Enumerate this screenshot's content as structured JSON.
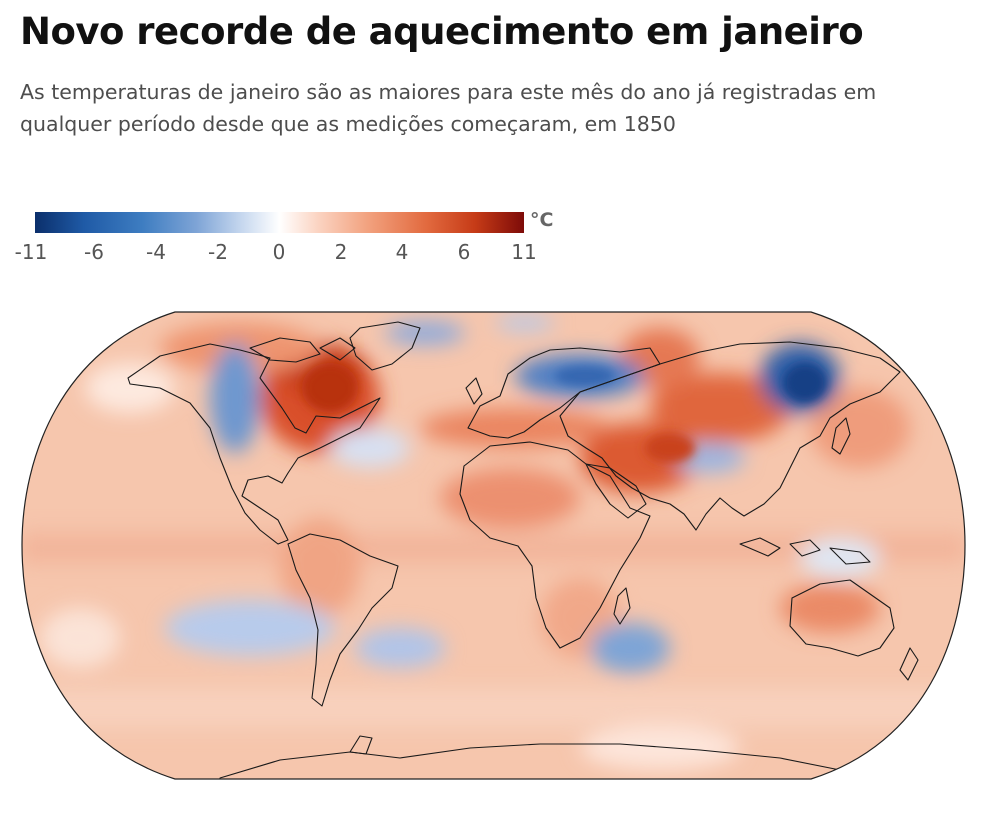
{
  "header": {
    "title": "Novo recorde de aquecimento em janeiro",
    "subtitle": "As temperaturas de janeiro são as maiores para este mês do ano já registradas em qualquer período desde que as medições começaram, em 1850"
  },
  "legend": {
    "unit": "°C",
    "ticks": [
      "-11",
      "-6",
      "-4",
      "-2",
      "0",
      "2",
      "4",
      "6",
      "11"
    ],
    "colors": {
      "cold_extreme": "#0b2f6b",
      "cold": "#3e7dc1",
      "neutral": "#ffffff",
      "warm": "#e26a3f",
      "warm_extreme": "#7d0b08"
    }
  },
  "map": {
    "projection": "robinson",
    "base_color": "#f7c8b0",
    "coastline_color": "#1a1a1a"
  }
}
